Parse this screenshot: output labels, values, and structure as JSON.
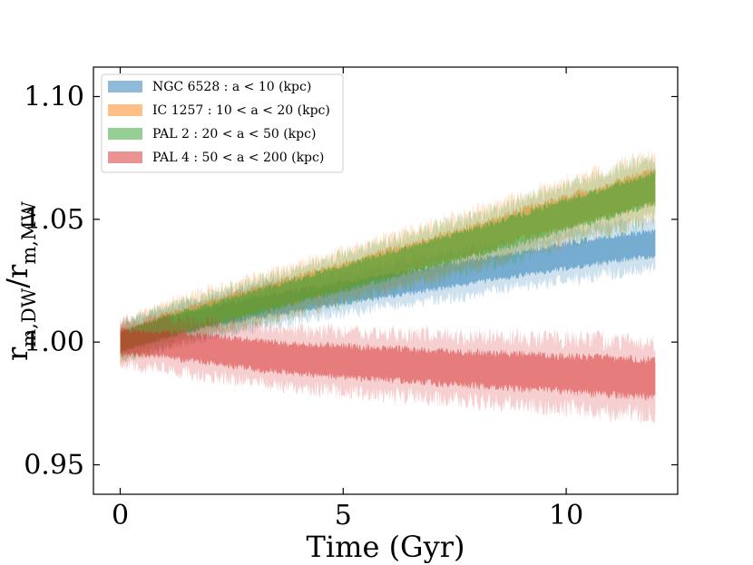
{
  "chart_data": {
    "type": "area",
    "title": "",
    "xlabel": "Time (Gyr)",
    "ylabel": {
      "base": "r",
      "num_sub": "m,DW",
      "sep": "/r",
      "den_sub": "m,MW"
    },
    "xlim": [
      -0.6,
      12.5
    ],
    "ylim": [
      0.938,
      1.112
    ],
    "xticks": [
      0,
      5,
      10
    ],
    "xtick_labels": [
      "0",
      "5",
      "10"
    ],
    "yticks": [
      0.95,
      1.0,
      1.05,
      1.1
    ],
    "ytick_labels": [
      "0.95",
      "1.00",
      "1.05",
      "1.10"
    ],
    "grid": false,
    "legend_position": "top-left",
    "series": [
      {
        "name": "NGC 6528 : a < 10 (kpc)",
        "color": "#1f77b4",
        "x": [
          0,
          1,
          2,
          3,
          4,
          5,
          6,
          7,
          8,
          9,
          10,
          11,
          12
        ],
        "mean": [
          1.0,
          1.006,
          1.01,
          1.014,
          1.017,
          1.02,
          1.023,
          1.026,
          1.029,
          1.032,
          1.035,
          1.038,
          1.04
        ],
        "spread": [
          0.01,
          0.01,
          0.01,
          0.011,
          0.011,
          0.011,
          0.011,
          0.012,
          0.012,
          0.012,
          0.013,
          0.013,
          0.013
        ]
      },
      {
        "name": "IC 1257 : 10 < a < 20 (kpc)",
        "color": "#ff7f0e",
        "x": [
          0,
          1,
          2,
          3,
          4,
          5,
          6,
          7,
          8,
          9,
          10,
          11,
          12
        ],
        "mean": [
          1.0,
          1.007,
          1.012,
          1.017,
          1.022,
          1.027,
          1.032,
          1.037,
          1.042,
          1.048,
          1.053,
          1.058,
          1.064
        ],
        "spread": [
          0.01,
          0.011,
          0.012,
          0.012,
          0.013,
          0.013,
          0.014,
          0.014,
          0.015,
          0.015,
          0.016,
          0.016,
          0.017
        ]
      },
      {
        "name": "PAL 2 : 20 < a < 50 (kpc)",
        "color": "#2ca02c",
        "x": [
          0,
          1,
          2,
          3,
          4,
          5,
          6,
          7,
          8,
          9,
          10,
          11,
          12
        ],
        "mean": [
          1.0,
          1.006,
          1.011,
          1.016,
          1.021,
          1.026,
          1.031,
          1.036,
          1.041,
          1.046,
          1.052,
          1.057,
          1.063
        ],
        "spread": [
          0.01,
          0.011,
          0.011,
          0.012,
          0.012,
          0.013,
          0.013,
          0.014,
          0.014,
          0.015,
          0.015,
          0.016,
          0.016
        ]
      },
      {
        "name": "PAL 4 : 50 < a < 200 (kpc)",
        "color": "#d62728",
        "x": [
          0,
          1,
          2,
          3,
          4,
          5,
          6,
          7,
          8,
          9,
          10,
          11,
          12
        ],
        "mean": [
          1.0,
          0.999,
          0.997,
          0.995,
          0.993,
          0.992,
          0.991,
          0.99,
          0.989,
          0.988,
          0.987,
          0.986,
          0.985
        ],
        "spread": [
          0.012,
          0.013,
          0.014,
          0.015,
          0.015,
          0.016,
          0.016,
          0.017,
          0.017,
          0.018,
          0.018,
          0.019,
          0.019
        ]
      }
    ]
  }
}
